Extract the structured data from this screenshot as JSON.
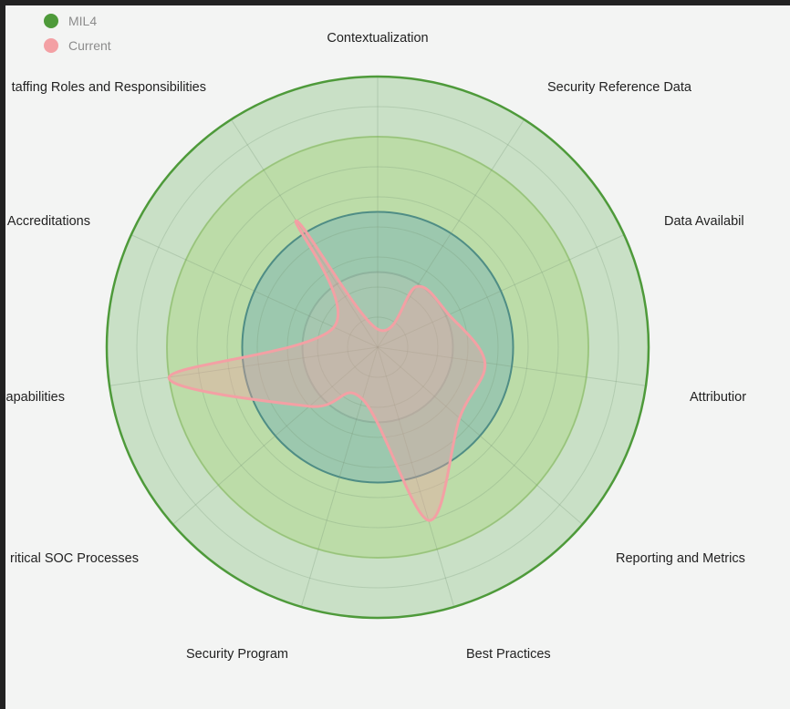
{
  "chart_data": {
    "type": "radar",
    "axes": [
      "Contextualization",
      "Security Reference Data",
      "Data Availability",
      "Attribution",
      "Reporting and Metrics",
      "Best Practices",
      "Security Program",
      "Critical SOC Processes",
      "Capabilities",
      "Accreditations",
      "Staffing Roles and Responsibilities"
    ],
    "axes_shown": [
      "Contextualization",
      "Security Reference Data",
      "Data Availabil",
      "Attributior",
      "Reporting and Metrics",
      "Best Practices",
      "Security Program",
      "ritical SOC Processes",
      "apabilities",
      "Accreditations",
      "taffing Roles and Responsibilities"
    ],
    "scale_max": 5,
    "levels": 9,
    "legend_position": "top-left",
    "series": [
      {
        "name": "MIL4",
        "color": "#4e9a3a",
        "values": [
          4.5,
          4.5,
          4.5,
          4.5,
          4.5,
          4.5,
          4.5,
          4.5,
          4.5,
          4.5,
          4.5
        ]
      },
      {
        "name": "Current",
        "color": "#f3a0a4",
        "values": [
          0.3,
          1.2,
          1.3,
          1.8,
          1.8,
          3.0,
          0.9,
          1.5,
          3.5,
          0.8,
          2.5
        ]
      }
    ],
    "reference_rings": [
      {
        "value": 3.5,
        "stroke": "#a3cf82",
        "fill": "#bcdca8"
      },
      {
        "value": 2.25,
        "stroke": "#4f8d85",
        "fill": "#9cc8ae"
      },
      {
        "value": 1.25,
        "stroke": "#8fb39e",
        "fill": "#a6c7b0"
      }
    ]
  }
}
